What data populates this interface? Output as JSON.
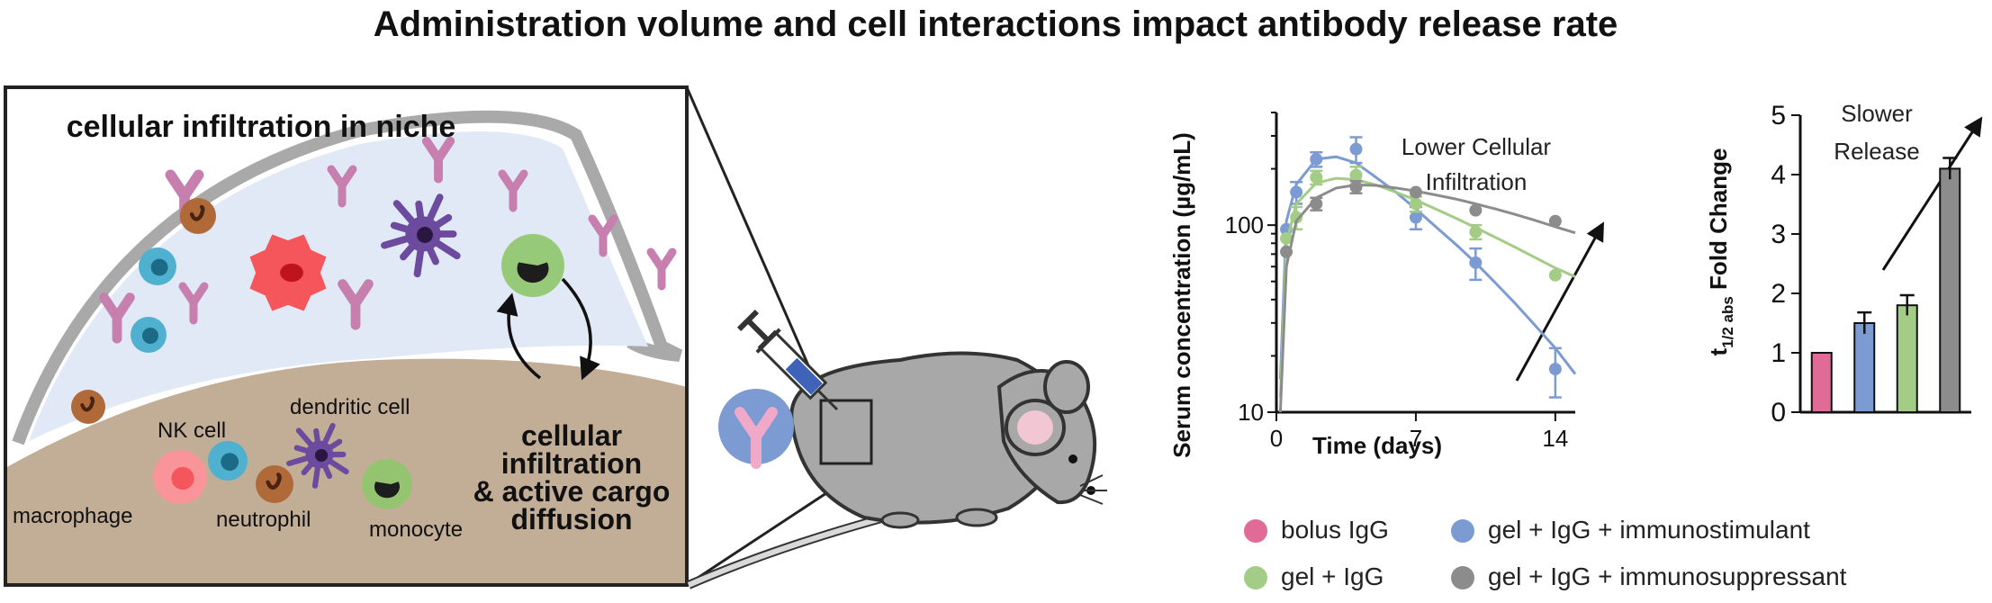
{
  "title": "Administration volume and cell interactions impact antibody release rate",
  "niche": {
    "heading": "cellular infiltration in niche",
    "cells": {
      "nk": "NK cell",
      "dendritic": "dendritic cell",
      "macrophage": "macrophage",
      "neutrophil": "neutrophil",
      "monocyte": "monocyte"
    },
    "process_lines": [
      "cellular",
      "infiltration",
      "& active cargo",
      "diffusion"
    ]
  },
  "colors": {
    "pink": "#e06b97",
    "blue": "#7b9bd2",
    "green": "#a3cc86",
    "gray": "#8c8c8c",
    "macrophage": "#f4565c",
    "nk": "#4fb0cf",
    "neutrophil": "#b06a3a",
    "monocyte": "#8fc66a",
    "dendritic": "#6c4a9e",
    "antibody": "#c67fae",
    "tissue": "#c2ad97",
    "gel": "#e2e9f6"
  },
  "chart_data": [
    {
      "type": "scatter",
      "ylabel": "Serum concentration (µg/mL)",
      "xlabel": "Time (days)",
      "xlim": [
        0,
        15
      ],
      "ylim": [
        10,
        400
      ],
      "yscale": "log",
      "xticks": [
        "0",
        "7",
        "14"
      ],
      "yticks": [
        "10",
        "100"
      ],
      "annotation_lines": [
        "Lower Cellular",
        "Infiltration"
      ],
      "series": [
        {
          "name": "gel + IgG + immunostimulant",
          "color": "blue",
          "x": [
            0.5,
            1,
            2,
            4,
            7,
            10,
            14
          ],
          "y": [
            95,
            150,
            225,
            255,
            110,
            63,
            17
          ],
          "err": [
            0,
            20,
            20,
            40,
            15,
            12,
            5
          ],
          "fit": [
            [
              0.2,
              15
            ],
            [
              0.5,
              105
            ],
            [
              1,
              165
            ],
            [
              2,
              225
            ],
            [
              3,
              232
            ],
            [
              4,
              215
            ],
            [
              5,
              180
            ],
            [
              6,
              150
            ],
            [
              7,
              122
            ],
            [
              8,
              98
            ],
            [
              9,
              79
            ],
            [
              10,
              63
            ],
            [
              11,
              49
            ],
            [
              12,
              38
            ],
            [
              13,
              29
            ],
            [
              14,
              22
            ],
            [
              15,
              16
            ]
          ]
        },
        {
          "name": "gel + IgG",
          "color": "green",
          "x": [
            0.5,
            1,
            2,
            4,
            7,
            10,
            14
          ],
          "y": [
            85,
            110,
            180,
            185,
            130,
            92,
            54
          ],
          "err": [
            0,
            15,
            15,
            20,
            12,
            8,
            0
          ],
          "fit": [
            [
              0.2,
              12
            ],
            [
              0.5,
              80
            ],
            [
              1,
              130
            ],
            [
              2,
              168
            ],
            [
              3,
              178
            ],
            [
              4,
              175
            ],
            [
              5,
              164
            ],
            [
              6,
              150
            ],
            [
              7,
              136
            ],
            [
              8,
              122
            ],
            [
              9,
              109
            ],
            [
              10,
              97
            ],
            [
              11,
              86
            ],
            [
              12,
              76
            ],
            [
              13,
              67
            ],
            [
              14,
              59
            ],
            [
              15,
              53
            ]
          ]
        },
        {
          "name": "gel + IgG + immunosuppressant",
          "color": "gray",
          "x": [
            0.5,
            2,
            4,
            7,
            10,
            14
          ],
          "y": [
            72,
            130,
            160,
            150,
            120,
            105
          ],
          "err": [
            0,
            10,
            12,
            0,
            0,
            0
          ],
          "fit": [
            [
              0.2,
              10
            ],
            [
              0.5,
              60
            ],
            [
              1,
              105
            ],
            [
              2,
              140
            ],
            [
              3,
              158
            ],
            [
              4,
              164
            ],
            [
              5,
              163
            ],
            [
              6,
              158
            ],
            [
              7,
              152
            ],
            [
              8,
              145
            ],
            [
              9,
              138
            ],
            [
              10,
              130
            ],
            [
              11,
              122
            ],
            [
              12,
              114
            ],
            [
              13,
              106
            ],
            [
              14,
              98
            ],
            [
              15,
              91
            ]
          ]
        }
      ]
    },
    {
      "type": "bar",
      "ylabel_main": "t",
      "ylabel_sub": "1/2 abs",
      "ylabel_tail": " Fold Change",
      "ylim": [
        0,
        5
      ],
      "yticks": [
        "0",
        "1",
        "2",
        "3",
        "4",
        "5"
      ],
      "annotation_lines": [
        "Slower",
        "Release"
      ],
      "categories": [
        "bolus IgG",
        "gel + IgG + immunostimulant",
        "gel + IgG",
        "gel + IgG + immunosuppressant"
      ],
      "values": [
        1.0,
        1.5,
        1.8,
        4.1
      ],
      "err": [
        0,
        0.18,
        0.17,
        0.18
      ],
      "colors": [
        "pink",
        "blue",
        "green",
        "gray"
      ]
    }
  ],
  "legend": [
    {
      "label": "bolus IgG",
      "color": "pink"
    },
    {
      "label": "gel + IgG + immunostimulant",
      "color": "blue"
    },
    {
      "label": "gel + IgG",
      "color": "green"
    },
    {
      "label": "gel + IgG + immunosuppressant",
      "color": "gray"
    }
  ]
}
